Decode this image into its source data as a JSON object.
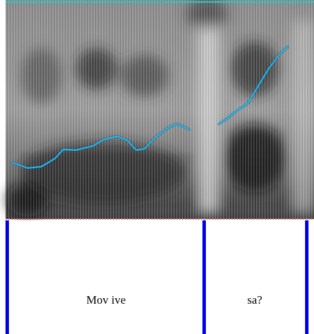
{
  "tier": {
    "intervals": [
      {
        "label": "Mov ive"
      },
      {
        "label": "sa?"
      }
    ]
  }
}
